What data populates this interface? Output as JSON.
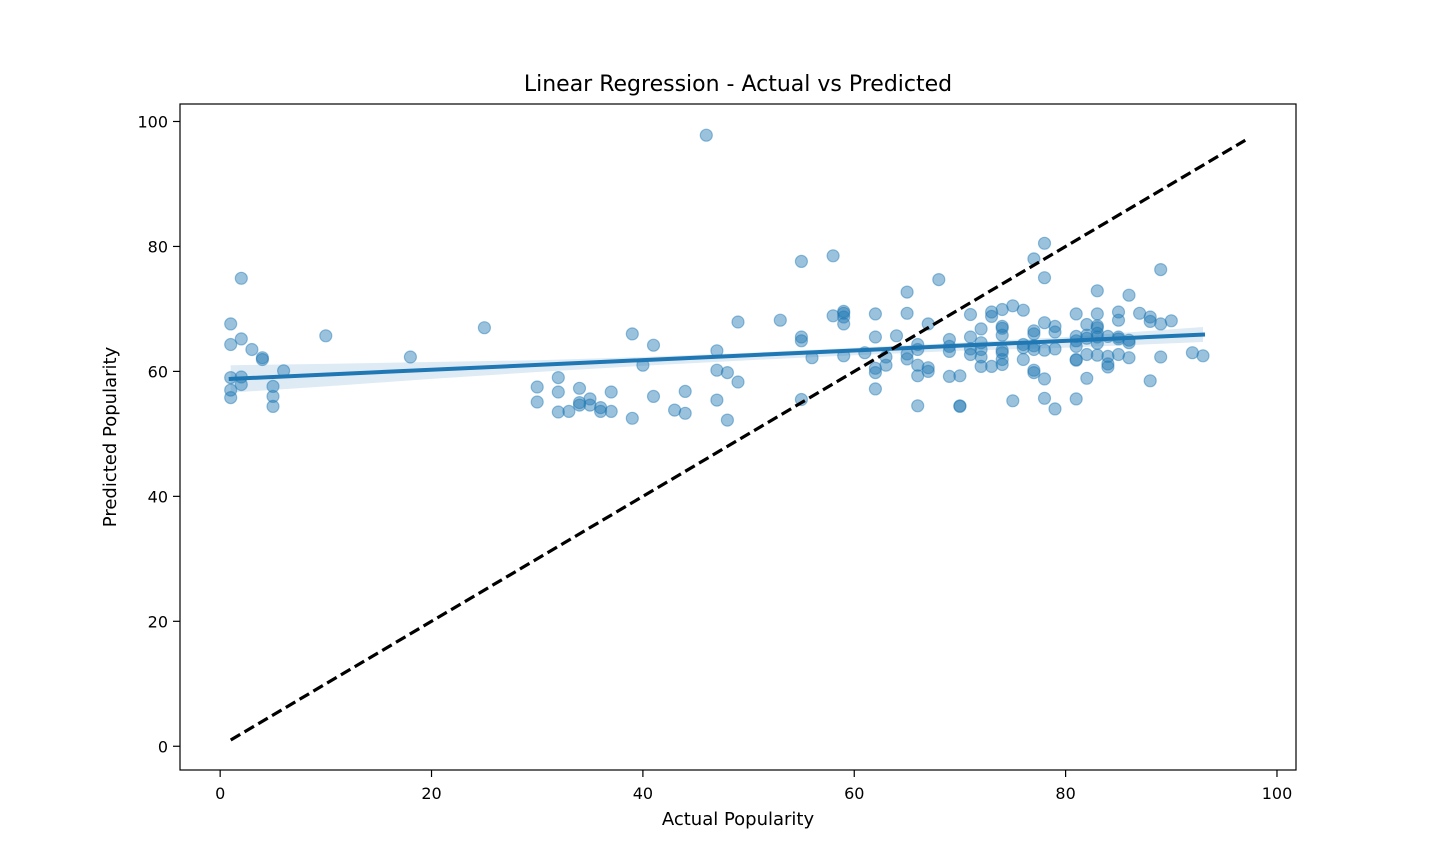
{
  "chart_data": {
    "type": "scatter",
    "title": "Linear Regression - Actual vs Predicted",
    "xlabel": "Actual Popularity",
    "ylabel": "Predicted Popularity",
    "xlim": [
      -3.8,
      101.8
    ],
    "ylim": [
      -3.8,
      102.8
    ],
    "xticks": [
      0,
      20,
      40,
      60,
      80,
      100
    ],
    "yticks": [
      0,
      20,
      40,
      60,
      80,
      100
    ],
    "grid": false,
    "colors": {
      "points": "#1f77b4",
      "regression_line": "#1f77b4",
      "confidence_band": "#1f77b4",
      "identity_line": "#000000"
    },
    "points_alpha": 0.45,
    "regression": {
      "x": [
        1,
        93
      ],
      "y": [
        58.8,
        65.9
      ]
    },
    "confidence_band": {
      "x": [
        1,
        10,
        20,
        30,
        40,
        50,
        60,
        70,
        80,
        93
      ],
      "lower": [
        56.6,
        57.6,
        58.8,
        59.9,
        60.9,
        61.8,
        62.6,
        63.3,
        63.8,
        64.7
      ],
      "upper": [
        61.0,
        61.2,
        61.5,
        61.8,
        62.3,
        63.0,
        63.8,
        64.6,
        65.5,
        67.1
      ]
    },
    "identity_line": {
      "x": [
        1,
        97
      ],
      "y": [
        1,
        97
      ]
    },
    "points": [
      [
        1,
        67.6
      ],
      [
        1,
        64.3
      ],
      [
        1,
        59.0
      ],
      [
        1,
        57.0
      ],
      [
        1,
        55.8
      ],
      [
        2,
        74.9
      ],
      [
        2,
        65.2
      ],
      [
        2,
        59.1
      ],
      [
        2,
        57.9
      ],
      [
        3,
        63.5
      ],
      [
        4,
        62.2
      ],
      [
        4,
        61.9
      ],
      [
        5,
        57.6
      ],
      [
        5,
        56.0
      ],
      [
        5,
        54.4
      ],
      [
        6,
        60.1
      ],
      [
        10,
        65.7
      ],
      [
        18,
        62.3
      ],
      [
        25,
        67.0
      ],
      [
        30,
        57.5
      ],
      [
        30,
        55.1
      ],
      [
        32,
        59.0
      ],
      [
        32,
        56.7
      ],
      [
        32,
        53.5
      ],
      [
        33,
        53.6
      ],
      [
        34,
        57.3
      ],
      [
        34,
        55.0
      ],
      [
        34,
        54.6
      ],
      [
        35,
        55.6
      ],
      [
        35,
        54.6
      ],
      [
        36,
        54.2
      ],
      [
        36,
        53.6
      ],
      [
        37,
        56.7
      ],
      [
        37,
        53.6
      ],
      [
        39,
        66.0
      ],
      [
        39,
        52.5
      ],
      [
        40,
        61.0
      ],
      [
        41,
        64.2
      ],
      [
        41,
        56.0
      ],
      [
        43,
        53.8
      ],
      [
        44,
        56.8
      ],
      [
        44,
        53.3
      ],
      [
        46,
        97.8
      ],
      [
        47,
        63.3
      ],
      [
        47,
        60.2
      ],
      [
        47,
        55.4
      ],
      [
        48,
        59.8
      ],
      [
        48,
        52.2
      ],
      [
        49,
        67.9
      ],
      [
        49,
        58.3
      ],
      [
        53,
        68.2
      ],
      [
        55,
        77.6
      ],
      [
        55,
        65.5
      ],
      [
        55,
        64.9
      ],
      [
        55,
        55.5
      ],
      [
        56,
        62.2
      ],
      [
        58,
        78.5
      ],
      [
        58,
        68.9
      ],
      [
        59,
        69.6
      ],
      [
        59,
        69.3
      ],
      [
        59,
        68.7
      ],
      [
        59,
        67.6
      ],
      [
        59,
        62.5
      ],
      [
        61,
        63.0
      ],
      [
        62,
        69.2
      ],
      [
        62,
        65.5
      ],
      [
        62,
        60.5
      ],
      [
        62,
        59.8
      ],
      [
        62,
        57.2
      ],
      [
        63,
        62.3
      ],
      [
        63,
        61.0
      ],
      [
        64,
        65.7
      ],
      [
        65,
        72.7
      ],
      [
        65,
        69.3
      ],
      [
        65,
        62.8
      ],
      [
        65,
        62.0
      ],
      [
        66,
        64.3
      ],
      [
        66,
        63.5
      ],
      [
        66,
        61.0
      ],
      [
        66,
        59.3
      ],
      [
        66,
        54.5
      ],
      [
        67,
        67.6
      ],
      [
        67,
        60.6
      ],
      [
        67,
        60.0
      ],
      [
        68,
        74.7
      ],
      [
        69,
        65.1
      ],
      [
        69,
        64.0
      ],
      [
        69,
        63.2
      ],
      [
        69,
        59.2
      ],
      [
        70,
        59.3
      ],
      [
        70,
        54.5
      ],
      [
        70,
        54.4
      ],
      [
        71,
        69.1
      ],
      [
        71,
        65.5
      ],
      [
        71,
        63.6
      ],
      [
        71,
        62.7
      ],
      [
        72,
        66.8
      ],
      [
        72,
        64.6
      ],
      [
        72,
        63.5
      ],
      [
        72,
        62.3
      ],
      [
        72,
        60.8
      ],
      [
        73,
        69.5
      ],
      [
        73,
        68.8
      ],
      [
        73,
        60.8
      ],
      [
        74,
        69.9
      ],
      [
        74,
        67.2
      ],
      [
        74,
        66.9
      ],
      [
        74,
        65.8
      ],
      [
        74,
        63.4
      ],
      [
        74,
        63.0
      ],
      [
        74,
        61.9
      ],
      [
        74,
        61.1
      ],
      [
        75,
        70.5
      ],
      [
        75,
        55.3
      ],
      [
        76,
        69.8
      ],
      [
        76,
        64.3
      ],
      [
        76,
        63.8
      ],
      [
        76,
        61.9
      ],
      [
        77,
        78.0
      ],
      [
        77,
        66.5
      ],
      [
        77,
        66.0
      ],
      [
        77,
        64.1
      ],
      [
        77,
        63.5
      ],
      [
        77,
        60.2
      ],
      [
        77,
        59.8
      ],
      [
        78,
        80.5
      ],
      [
        78,
        75.0
      ],
      [
        78,
        67.8
      ],
      [
        78,
        63.4
      ],
      [
        78,
        58.8
      ],
      [
        78,
        55.7
      ],
      [
        79,
        67.2
      ],
      [
        79,
        66.3
      ],
      [
        79,
        63.6
      ],
      [
        79,
        54.0
      ],
      [
        81,
        69.2
      ],
      [
        81,
        65.6
      ],
      [
        81,
        64.9
      ],
      [
        81,
        64.0
      ],
      [
        81,
        61.9
      ],
      [
        81,
        61.8
      ],
      [
        81,
        55.6
      ],
      [
        82,
        67.5
      ],
      [
        82,
        65.8
      ],
      [
        82,
        65.3
      ],
      [
        82,
        62.7
      ],
      [
        82,
        58.9
      ],
      [
        83,
        72.9
      ],
      [
        83,
        69.2
      ],
      [
        83,
        67.3
      ],
      [
        83,
        67.0
      ],
      [
        83,
        66.1
      ],
      [
        83,
        65.5
      ],
      [
        83,
        64.5
      ],
      [
        83,
        62.6
      ],
      [
        84,
        65.6
      ],
      [
        84,
        62.4
      ],
      [
        84,
        61.2
      ],
      [
        84,
        60.7
      ],
      [
        85,
        69.5
      ],
      [
        85,
        68.2
      ],
      [
        85,
        65.5
      ],
      [
        85,
        65.2
      ],
      [
        85,
        62.7
      ],
      [
        86,
        72.2
      ],
      [
        86,
        65.0
      ],
      [
        86,
        64.6
      ],
      [
        86,
        62.2
      ],
      [
        87,
        69.3
      ],
      [
        88,
        68.7
      ],
      [
        88,
        68.0
      ],
      [
        88,
        58.5
      ],
      [
        89,
        76.3
      ],
      [
        89,
        67.6
      ],
      [
        89,
        62.3
      ],
      [
        90,
        68.1
      ],
      [
        92,
        63.0
      ],
      [
        93,
        62.5
      ]
    ]
  }
}
